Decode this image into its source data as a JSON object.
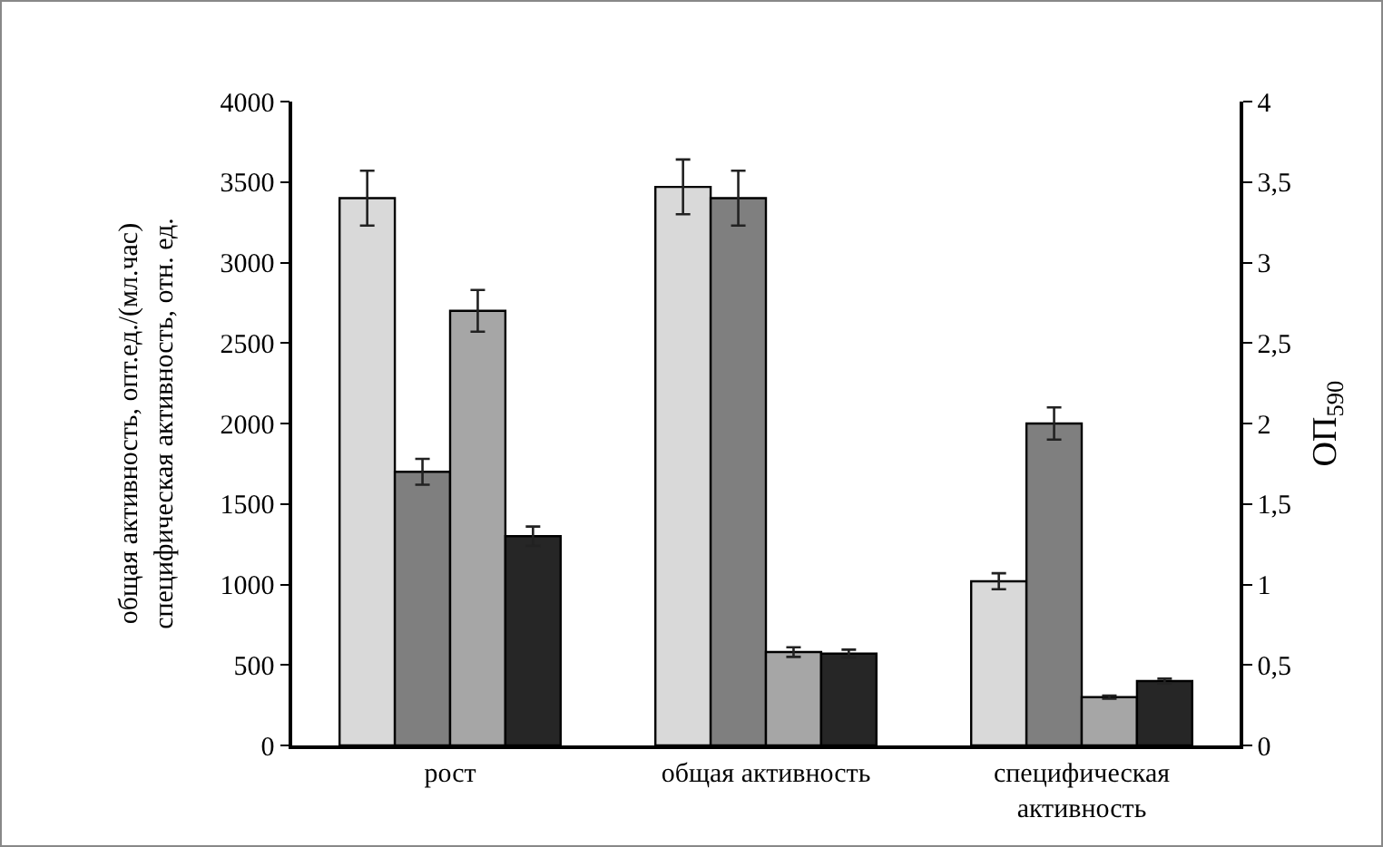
{
  "chart_data": {
    "type": "bar",
    "ylabel": "общая активность, опт.ед./(мл.час)\nспецифическая активность, отн. ед.",
    "y2label": "ОП$_{590}$",
    "categories": [
      "рост",
      "общая активность",
      "специфическая активность"
    ],
    "series": [
      {
        "color": "#d9d9d9",
        "values": [
          3400,
          3470,
          1020
        ],
        "errors": [
          170,
          170,
          50
        ]
      },
      {
        "color": "#7f7f7f",
        "values": [
          1700,
          3400,
          2000
        ],
        "errors": [
          80,
          170,
          100
        ]
      },
      {
        "color": "#a6a6a6",
        "values": [
          2700,
          580,
          300
        ],
        "errors": [
          130,
          30,
          10
        ]
      },
      {
        "color": "#262626",
        "values": [
          1300,
          570,
          400
        ],
        "errors": [
          60,
          25,
          15
        ]
      }
    ],
    "ylim": [
      0,
      4000
    ],
    "yticks": [
      0,
      500,
      1000,
      1500,
      2000,
      2500,
      3000,
      3500,
      4000
    ],
    "y2lim": [
      0,
      4
    ],
    "y2ticks": [
      0,
      {
        "value": 0.5,
        "label": "0,5"
      },
      1,
      {
        "value": 1.5,
        "label": "1,5"
      },
      2,
      {
        "value": 2.5,
        "label": "2,5"
      },
      3,
      {
        "value": 3.5,
        "label": "3,5"
      },
      4
    ]
  }
}
